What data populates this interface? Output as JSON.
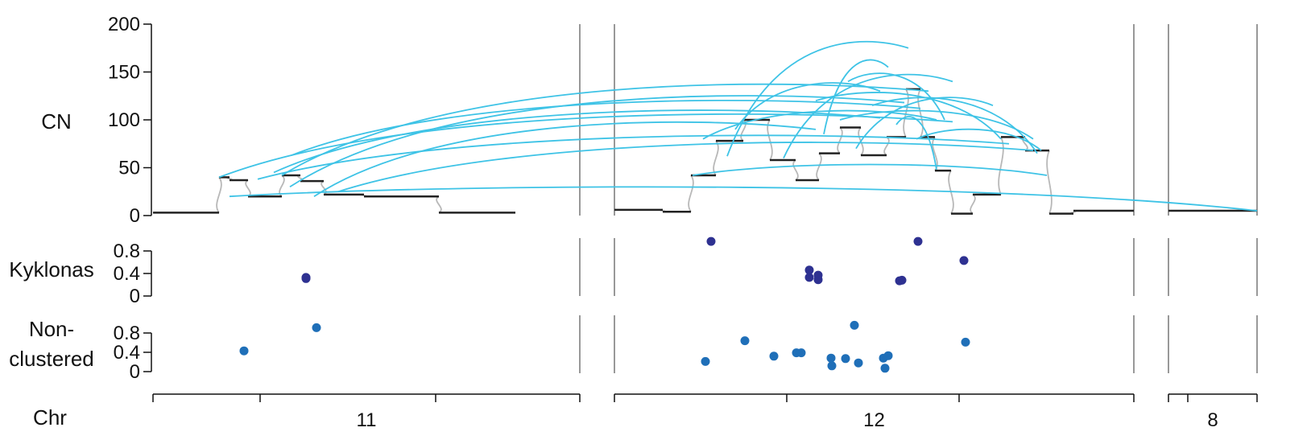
{
  "chart_data": {
    "type": "scatter",
    "colors": {
      "sv": "#3ec3e6",
      "kyklonas": "#2e3191",
      "nonclustered": "#1f6fb8",
      "segment": "#222222",
      "connector": "#b8b8b8",
      "border": "#555555"
    },
    "chromosomes": [
      {
        "name": "11",
        "start": 0,
        "end": 135
      },
      {
        "name": "12",
        "start": 0,
        "end": 133
      },
      {
        "name": "8",
        "start": 0,
        "end": 20
      }
    ],
    "panels": [
      {
        "id": "cn",
        "label": "CN",
        "ylim": [
          0,
          200
        ],
        "ticks": [
          0,
          50,
          100,
          150,
          200
        ]
      },
      {
        "id": "kyklonas",
        "label": "Kyklonas",
        "ylim": [
          0,
          1
        ],
        "ticks": [
          0,
          0.4,
          0.8
        ]
      },
      {
        "id": "nonclustered",
        "label": "Non-clustered",
        "ylim": [
          0,
          1
        ],
        "ticks": [
          0,
          0.4,
          0.8
        ]
      }
    ],
    "xaxis": {
      "label": "Chr"
    },
    "cn_segments": [
      {
        "chr": "11",
        "start": 0,
        "end": 82,
        "cn": 3
      },
      {
        "chr": "11",
        "start": 82,
        "end": 95,
        "cn": 40
      },
      {
        "chr": "11",
        "start": 95,
        "end": 118,
        "cn": 37
      },
      {
        "chr": "11",
        "start": 118,
        "end": 135,
        "cn": 20
      },
      {
        "chr": "11",
        "start": 135,
        "end": 160,
        "cn": 20
      },
      {
        "chr": "11",
        "start": 160,
        "end": 183,
        "cn": 42
      },
      {
        "chr": "11",
        "start": 183,
        "end": 212,
        "cn": 36
      },
      {
        "chr": "11",
        "start": 212,
        "end": 262,
        "cn": 22
      },
      {
        "chr": "11",
        "start": 262,
        "end": 312,
        "cn": 20
      },
      {
        "chr": "11",
        "start": 312,
        "end": 355,
        "cn": 20
      },
      {
        "chr": "11",
        "start": 355,
        "end": 450,
        "cn": 3
      },
      {
        "chr": "12",
        "start": 0,
        "end": 60,
        "cn": 6
      },
      {
        "chr": "12",
        "start": 60,
        "end": 95,
        "cn": 4
      },
      {
        "chr": "12",
        "start": 95,
        "end": 126,
        "cn": 42
      },
      {
        "chr": "12",
        "start": 126,
        "end": 160,
        "cn": 78
      },
      {
        "chr": "12",
        "start": 160,
        "end": 193,
        "cn": 100
      },
      {
        "chr": "12",
        "start": 193,
        "end": 225,
        "cn": 58
      },
      {
        "chr": "12",
        "start": 225,
        "end": 254,
        "cn": 37
      },
      {
        "chr": "12",
        "start": 254,
        "end": 280,
        "cn": 65
      },
      {
        "chr": "12",
        "start": 280,
        "end": 306,
        "cn": 92
      },
      {
        "chr": "12",
        "start": 306,
        "end": 338,
        "cn": 63
      },
      {
        "chr": "12",
        "start": 338,
        "end": 362,
        "cn": 82
      },
      {
        "chr": "12",
        "start": 362,
        "end": 380,
        "cn": 132
      },
      {
        "chr": "12",
        "start": 380,
        "end": 398,
        "cn": 82
      },
      {
        "chr": "12",
        "start": 398,
        "end": 418,
        "cn": 47
      },
      {
        "chr": "12",
        "start": 418,
        "end": 445,
        "cn": 2
      },
      {
        "chr": "12",
        "start": 445,
        "end": 480,
        "cn": 22
      },
      {
        "chr": "12",
        "start": 480,
        "end": 510,
        "cn": 82
      },
      {
        "chr": "12",
        "start": 510,
        "end": 540,
        "cn": 68
      },
      {
        "chr": "12",
        "start": 540,
        "end": 570,
        "cn": 2
      },
      {
        "chr": "12",
        "start": 570,
        "end": 645,
        "cn": 5
      },
      {
        "chr": "8",
        "start": 0,
        "end": 110,
        "cn": 5
      }
    ],
    "sv_links": [
      {
        "a": {
          "chr": "11",
          "pos": 82,
          "cn": 40
        },
        "b": {
          "chr": "12",
          "pos": 420,
          "cn": 98
        }
      },
      {
        "a": {
          "chr": "11",
          "pos": 160,
          "cn": 42
        },
        "b": {
          "chr": "12",
          "pos": 390,
          "cn": 130
        }
      },
      {
        "a": {
          "chr": "11",
          "pos": 170,
          "cn": 30
        },
        "b": {
          "chr": "12",
          "pos": 360,
          "cn": 118
        }
      },
      {
        "a": {
          "chr": "11",
          "pos": 200,
          "cn": 20
        },
        "b": {
          "chr": "12",
          "pos": 250,
          "cn": 90
        }
      },
      {
        "a": {
          "chr": "11",
          "pos": 230,
          "cn": 25
        },
        "b": {
          "chr": "12",
          "pos": 520,
          "cn": 68
        }
      },
      {
        "a": {
          "chr": "11",
          "pos": 150,
          "cn": 45
        },
        "b": {
          "chr": "12",
          "pos": 330,
          "cn": 102
        }
      },
      {
        "a": {
          "chr": "11",
          "pos": 172,
          "cn": 63
        },
        "b": {
          "chr": "12",
          "pos": 380,
          "cn": 112
        }
      },
      {
        "a": {
          "chr": "11",
          "pos": 95,
          "cn": 20
        },
        "b": {
          "chr": "8",
          "pos": 110,
          "cn": 5
        }
      },
      {
        "a": {
          "chr": "11",
          "pos": 130,
          "cn": 38
        },
        "b": {
          "chr": "12",
          "pos": 490,
          "cn": 75
        }
      },
      {
        "a": {
          "chr": "12",
          "pos": 97,
          "cn": 42
        },
        "b": {
          "chr": "12",
          "pos": 537,
          "cn": 42
        }
      },
      {
        "a": {
          "chr": "12",
          "pos": 110,
          "cn": 80
        },
        "b": {
          "chr": "12",
          "pos": 400,
          "cn": 100
        }
      },
      {
        "a": {
          "chr": "12",
          "pos": 140,
          "cn": 62
        },
        "b": {
          "chr": "12",
          "pos": 365,
          "cn": 175
        }
      },
      {
        "a": {
          "chr": "12",
          "pos": 210,
          "cn": 60
        },
        "b": {
          "chr": "12",
          "pos": 420,
          "cn": 140
        }
      },
      {
        "a": {
          "chr": "12",
          "pos": 260,
          "cn": 85
        },
        "b": {
          "chr": "12",
          "pos": 340,
          "cn": 155
        }
      },
      {
        "a": {
          "chr": "12",
          "pos": 280,
          "cn": 100
        },
        "b": {
          "chr": "12",
          "pos": 520,
          "cn": 80
        }
      },
      {
        "a": {
          "chr": "12",
          "pos": 290,
          "cn": 140
        },
        "b": {
          "chr": "12",
          "pos": 410,
          "cn": 100
        }
      },
      {
        "a": {
          "chr": "12",
          "pos": 300,
          "cn": 70
        },
        "b": {
          "chr": "12",
          "pos": 470,
          "cn": 115
        }
      },
      {
        "a": {
          "chr": "12",
          "pos": 320,
          "cn": 115
        },
        "b": {
          "chr": "12",
          "pos": 525,
          "cn": 65
        }
      },
      {
        "a": {
          "chr": "12",
          "pos": 350,
          "cn": 95
        },
        "b": {
          "chr": "12",
          "pos": 400,
          "cn": 48
        }
      },
      {
        "a": {
          "chr": "12",
          "pos": 375,
          "cn": 80
        },
        "b": {
          "chr": "12",
          "pos": 530,
          "cn": 68
        }
      },
      {
        "a": {
          "chr": "12",
          "pos": 150,
          "cn": 90
        },
        "b": {
          "chr": "12",
          "pos": 330,
          "cn": 130
        }
      },
      {
        "a": {
          "chr": "12",
          "pos": 250,
          "cn": 120
        },
        "b": {
          "chr": "12",
          "pos": 480,
          "cn": 80
        }
      }
    ],
    "kyklonas_points": [
      {
        "chr": "11",
        "pos": 190,
        "value": 0.33
      },
      {
        "chr": "11",
        "pos": 190,
        "value": 0.31
      },
      {
        "chr": "12",
        "pos": 120,
        "value": 0.97
      },
      {
        "chr": "12",
        "pos": 242,
        "value": 0.46
      },
      {
        "chr": "12",
        "pos": 242,
        "value": 0.33
      },
      {
        "chr": "12",
        "pos": 253,
        "value": 0.37
      },
      {
        "chr": "12",
        "pos": 253,
        "value": 0.29
      },
      {
        "chr": "12",
        "pos": 354,
        "value": 0.27
      },
      {
        "chr": "12",
        "pos": 357,
        "value": 0.28
      },
      {
        "chr": "12",
        "pos": 377,
        "value": 0.97
      },
      {
        "chr": "12",
        "pos": 434,
        "value": 0.63
      }
    ],
    "nonclustered_points": [
      {
        "chr": "11",
        "pos": 113,
        "value": 0.43
      },
      {
        "chr": "11",
        "pos": 203,
        "value": 0.91
      },
      {
        "chr": "12",
        "pos": 113,
        "value": 0.21
      },
      {
        "chr": "12",
        "pos": 162,
        "value": 0.64
      },
      {
        "chr": "12",
        "pos": 198,
        "value": 0.32
      },
      {
        "chr": "12",
        "pos": 226,
        "value": 0.39
      },
      {
        "chr": "12",
        "pos": 232,
        "value": 0.39
      },
      {
        "chr": "12",
        "pos": 269,
        "value": 0.28
      },
      {
        "chr": "12",
        "pos": 270,
        "value": 0.12
      },
      {
        "chr": "12",
        "pos": 287,
        "value": 0.27
      },
      {
        "chr": "12",
        "pos": 298,
        "value": 0.96
      },
      {
        "chr": "12",
        "pos": 303,
        "value": 0.18
      },
      {
        "chr": "12",
        "pos": 334,
        "value": 0.28
      },
      {
        "chr": "12",
        "pos": 336,
        "value": 0.07
      },
      {
        "chr": "12",
        "pos": 340,
        "value": 0.33
      },
      {
        "chr": "12",
        "pos": 436,
        "value": 0.61
      }
    ]
  }
}
